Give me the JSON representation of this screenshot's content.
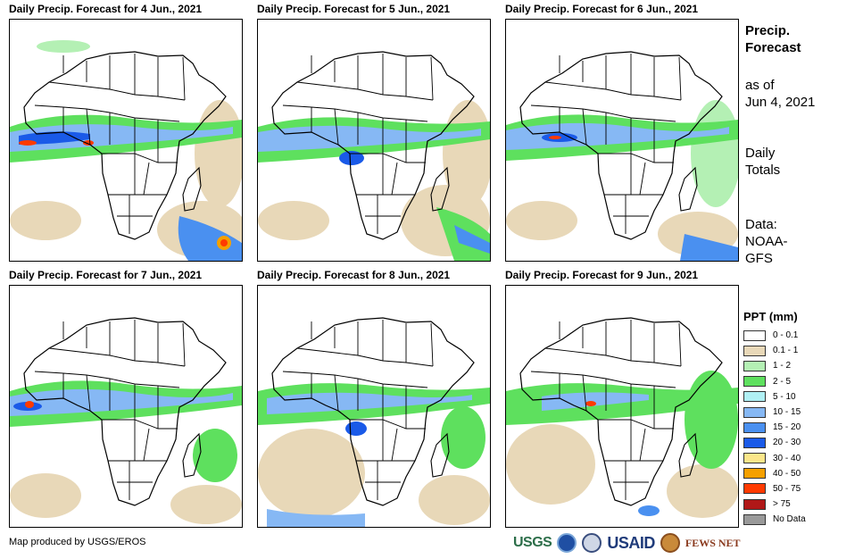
{
  "panels": [
    {
      "title": "Daily Precip. Forecast for 4 Jun., 2021"
    },
    {
      "title": "Daily Precip. Forecast for 5 Jun., 2021"
    },
    {
      "title": "Daily Precip. Forecast for 6 Jun., 2021"
    },
    {
      "title": "Daily Precip. Forecast for 7 Jun., 2021"
    },
    {
      "title": "Daily Precip. Forecast for 8 Jun., 2021"
    },
    {
      "title": "Daily Precip. Forecast for 9 Jun., 2021"
    }
  ],
  "side": {
    "title_line1": "Precip.",
    "title_line2": "Forecast",
    "asof_line1": "as of",
    "asof_line2": "Jun 4, 2021",
    "totals_line1": "Daily",
    "totals_line2": "Totals",
    "data_line1": "Data:",
    "data_line2": "NOAA-",
    "data_line3": "GFS"
  },
  "legend": {
    "title": "PPT (mm)",
    "items": [
      {
        "label": "0 - 0.1",
        "color": "#ffffff"
      },
      {
        "label": "0.1 - 1",
        "color": "#e8d8b8"
      },
      {
        "label": "1 - 2",
        "color": "#b4f0b4"
      },
      {
        "label": "2 - 5",
        "color": "#5ee05e"
      },
      {
        "label": "5 - 10",
        "color": "#b0f0f4"
      },
      {
        "label": "10 - 15",
        "color": "#86b8f4"
      },
      {
        "label": "15 - 20",
        "color": "#4a90f0"
      },
      {
        "label": "20 - 30",
        "color": "#1a5ae8"
      },
      {
        "label": "30 - 40",
        "color": "#fbe68a"
      },
      {
        "label": "40 - 50",
        "color": "#f5a000"
      },
      {
        "label": "50 - 75",
        "color": "#ff3a00"
      },
      {
        "label": "> 75",
        "color": "#b01818"
      },
      {
        "label": "No Data",
        "color": "#999999"
      }
    ]
  },
  "credit": "Map produced by USGS/EROS",
  "logos": {
    "usgs": "USGS",
    "usaid": "USAID",
    "fews": "FEWS NET"
  }
}
